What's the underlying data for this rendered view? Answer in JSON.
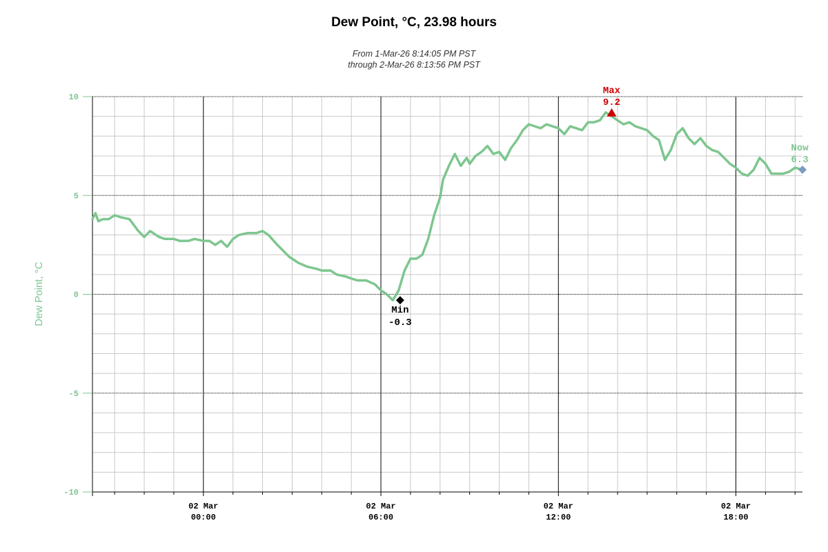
{
  "chart_data": {
    "type": "line",
    "title": "Dew Point, °C, 23.98 hours",
    "subtitle_line1": "From 1-Mar-26 8:14:05 PM PST",
    "subtitle_line2": "through 2-Mar-26 8:13:56 PM PST",
    "ylabel": "Dew Point, °C",
    "ylim": [
      -10,
      10
    ],
    "xlim": [
      -3.75,
      20.25
    ],
    "x_unit": "hours relative to 02 Mar 00:00",
    "yticks": [
      {
        "value": 10,
        "label": "10"
      },
      {
        "value": 5,
        "label": "5"
      },
      {
        "value": 0,
        "label": "0"
      },
      {
        "value": -5,
        "label": "-5"
      },
      {
        "value": -10,
        "label": "-10"
      }
    ],
    "xticks": [
      {
        "value": 0,
        "line1": "02 Mar",
        "line2": "00:00"
      },
      {
        "value": 6,
        "line1": "02 Mar",
        "line2": "06:00"
      },
      {
        "value": 12,
        "line1": "02 Mar",
        "line2": "12:00"
      },
      {
        "value": 18,
        "line1": "02 Mar",
        "line2": "18:00"
      }
    ],
    "series": [
      {
        "color": "#7dc68f",
        "x": [
          -3.75,
          -3.65,
          -3.55,
          -3.4,
          -3.2,
          -3.0,
          -2.8,
          -2.5,
          -2.2,
          -2.0,
          -1.8,
          -1.7,
          -1.5,
          -1.3,
          -1.0,
          -0.8,
          -0.5,
          -0.3,
          0.0,
          0.2,
          0.4,
          0.6,
          0.8,
          1.0,
          1.2,
          1.5,
          1.8,
          2.0,
          2.2,
          2.5,
          2.7,
          2.9,
          3.0,
          3.2,
          3.5,
          3.8,
          4.0,
          4.3,
          4.5,
          4.8,
          5.0,
          5.2,
          5.5,
          5.8,
          6.0,
          6.2,
          6.4,
          6.6,
          6.8,
          7.0,
          7.2,
          7.4,
          7.6,
          7.8,
          8.0,
          8.1,
          8.3,
          8.5,
          8.7,
          8.9,
          9.0,
          9.2,
          9.4,
          9.6,
          9.8,
          10.0,
          10.2,
          10.4,
          10.6,
          10.8,
          11.0,
          11.2,
          11.4,
          11.6,
          11.8,
          12.0,
          12.2,
          12.4,
          12.6,
          12.8,
          13.0,
          13.2,
          13.4,
          13.6,
          13.8,
          14.0,
          14.2,
          14.4,
          14.6,
          14.8,
          15.0,
          15.2,
          15.4,
          15.6,
          15.8,
          16.0,
          16.2,
          16.4,
          16.6,
          16.8,
          17.0,
          17.2,
          17.4,
          17.6,
          17.8,
          18.0,
          18.2,
          18.4,
          18.6,
          18.8,
          19.0,
          19.2,
          19.4,
          19.6,
          19.8,
          20.0,
          20.25
        ],
        "y": [
          3.8,
          4.1,
          3.7,
          3.8,
          3.8,
          4.0,
          3.9,
          3.8,
          3.2,
          2.9,
          3.2,
          3.1,
          2.9,
          2.8,
          2.8,
          2.7,
          2.7,
          2.8,
          2.7,
          2.7,
          2.5,
          2.7,
          2.4,
          2.8,
          3.0,
          3.1,
          3.1,
          3.2,
          3.0,
          2.5,
          2.2,
          1.9,
          1.8,
          1.6,
          1.4,
          1.3,
          1.2,
          1.2,
          1.0,
          0.9,
          0.8,
          0.7,
          0.7,
          0.5,
          0.2,
          0.0,
          -0.3,
          0.2,
          1.2,
          1.8,
          1.8,
          2.0,
          2.8,
          4.0,
          4.9,
          5.8,
          6.5,
          7.1,
          6.5,
          6.9,
          6.6,
          7.0,
          7.2,
          7.5,
          7.1,
          7.2,
          6.8,
          7.4,
          7.8,
          8.3,
          8.6,
          8.5,
          8.4,
          8.6,
          8.5,
          8.4,
          8.1,
          8.5,
          8.4,
          8.3,
          8.7,
          8.7,
          8.8,
          9.2,
          9.0,
          8.8,
          8.6,
          8.7,
          8.5,
          8.4,
          8.3,
          8.0,
          7.8,
          6.8,
          7.3,
          8.1,
          8.4,
          7.9,
          7.6,
          7.9,
          7.5,
          7.3,
          7.2,
          6.9,
          6.6,
          6.4,
          6.1,
          6.0,
          6.3,
          6.9,
          6.6,
          6.1,
          6.1,
          6.1,
          6.2,
          6.4,
          6.3
        ]
      }
    ],
    "annotations": {
      "min": {
        "label": "Min",
        "value_text": "-0.3",
        "x": 6.65,
        "y": -0.3,
        "color": "#000000"
      },
      "max": {
        "label": "Max",
        "value_text": "9.2",
        "x": 13.8,
        "y": 9.2,
        "color": "#cc0000"
      },
      "now": {
        "label": "Now",
        "value_text": "6.3",
        "x": 20.25,
        "y": 6.3,
        "color": "#7a9bbf"
      }
    },
    "grid": true,
    "colors": {
      "line": "#7dc68f",
      "ylabel": "#7dc68f",
      "max_marker": "#cc0000",
      "now_marker": "#7a9bbf",
      "min_marker": "#000000"
    }
  }
}
